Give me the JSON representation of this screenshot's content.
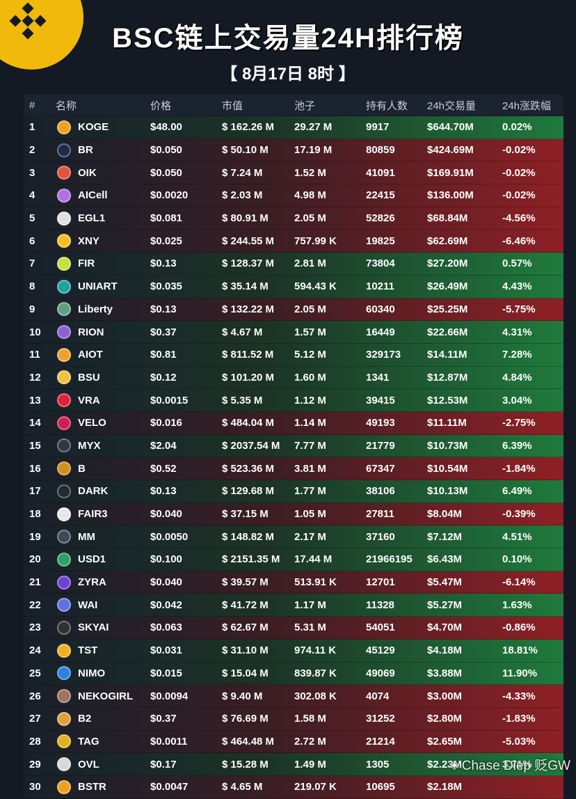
{
  "header": {
    "title": "BSC链上交易量24H排行榜",
    "subtitle": "【 8月17日 8时 】"
  },
  "watermark": "Chase Diep 贬GW",
  "colors": {
    "brand": "#f0b90b",
    "up": "#1f7a3c",
    "down": "#8e2025"
  },
  "chart_data": {
    "type": "table",
    "columns": [
      "#",
      "名称",
      "价格",
      "市值",
      "池子",
      "持有人数",
      "24h交易量",
      "24h涨跌幅"
    ],
    "rows": [
      {
        "rank": "1",
        "name": "KOGE",
        "price": "$48.00",
        "mcap": "$ 162.26 M",
        "pool": "29.27 M",
        "holders": "9917",
        "vol": "$644.70M",
        "chg": "0.02%",
        "dir": "up",
        "icon_color": "#f0a020"
      },
      {
        "rank": "2",
        "name": "BR",
        "price": "$0.050",
        "mcap": "$ 50.10 M",
        "pool": "17.19 M",
        "holders": "80859",
        "vol": "$424.69M",
        "chg": "-0.02%",
        "dir": "down",
        "icon_color": "#1b2a4a"
      },
      {
        "rank": "3",
        "name": "OIK",
        "price": "$0.050",
        "mcap": "$ 7.24 M",
        "pool": "1.52 M",
        "holders": "41091",
        "vol": "$169.91M",
        "chg": "-0.02%",
        "dir": "down",
        "icon_color": "#e0523a"
      },
      {
        "rank": "4",
        "name": "AICell",
        "price": "$0.0020",
        "mcap": "$ 2.03 M",
        "pool": "4.98 M",
        "holders": "22415",
        "vol": "$136.00M",
        "chg": "-0.02%",
        "dir": "down",
        "icon_color": "#b070e0"
      },
      {
        "rank": "5",
        "name": "EGL1",
        "price": "$0.081",
        "mcap": "$ 80.91 M",
        "pool": "2.05 M",
        "holders": "52826",
        "vol": "$68.84M",
        "chg": "-4.56%",
        "dir": "down",
        "icon_color": "#e0e0e0"
      },
      {
        "rank": "6",
        "name": "XNY",
        "price": "$0.025",
        "mcap": "$ 244.55 M",
        "pool": "757.99 K",
        "holders": "19825",
        "vol": "$62.69M",
        "chg": "-6.46%",
        "dir": "down",
        "icon_color": "#f0c020"
      },
      {
        "rank": "7",
        "name": "FIR",
        "price": "$0.13",
        "mcap": "$ 128.37 M",
        "pool": "2.81 M",
        "holders": "73804",
        "vol": "$27.20M",
        "chg": "0.57%",
        "dir": "up",
        "icon_color": "#c8e040"
      },
      {
        "rank": "8",
        "name": "UNIART",
        "price": "$0.035",
        "mcap": "$ 35.14 M",
        "pool": "594.43 K",
        "holders": "10211",
        "vol": "$26.49M",
        "chg": "4.43%",
        "dir": "up",
        "icon_color": "#20a0a0"
      },
      {
        "rank": "9",
        "name": "Liberty",
        "price": "$0.13",
        "mcap": "$ 132.22 M",
        "pool": "2.05 M",
        "holders": "60340",
        "vol": "$25.25M",
        "chg": "-5.75%",
        "dir": "down",
        "icon_color": "#60a080"
      },
      {
        "rank": "10",
        "name": "RION",
        "price": "$0.37",
        "mcap": "$ 4.67 M",
        "pool": "1.57 M",
        "holders": "16449",
        "vol": "$22.66M",
        "chg": "4.31%",
        "dir": "up",
        "icon_color": "#9060d0"
      },
      {
        "rank": "11",
        "name": "AIOT",
        "price": "$0.81",
        "mcap": "$ 811.52 M",
        "pool": "5.12 M",
        "holders": "329173",
        "vol": "$14.11M",
        "chg": "7.28%",
        "dir": "up",
        "icon_color": "#f0a030"
      },
      {
        "rank": "12",
        "name": "BSU",
        "price": "$0.12",
        "mcap": "$ 101.20 M",
        "pool": "1.60 M",
        "holders": "1341",
        "vol": "$12.87M",
        "chg": "4.84%",
        "dir": "up",
        "icon_color": "#f0c040"
      },
      {
        "rank": "13",
        "name": "VRA",
        "price": "$0.0015",
        "mcap": "$ 5.35 M",
        "pool": "1.12 M",
        "holders": "39415",
        "vol": "$12.53M",
        "chg": "3.04%",
        "dir": "up",
        "icon_color": "#e02040"
      },
      {
        "rank": "14",
        "name": "VELO",
        "price": "$0.016",
        "mcap": "$ 484.04 M",
        "pool": "1.14 M",
        "holders": "49193",
        "vol": "$11.11M",
        "chg": "-2.75%",
        "dir": "down",
        "icon_color": "#d02050"
      },
      {
        "rank": "15",
        "name": "MYX",
        "price": "$2.04",
        "mcap": "$ 2037.54 M",
        "pool": "7.77 M",
        "holders": "21779",
        "vol": "$10.73M",
        "chg": "6.39%",
        "dir": "up",
        "icon_color": "#303848"
      },
      {
        "rank": "16",
        "name": "B",
        "price": "$0.52",
        "mcap": "$ 523.36 M",
        "pool": "3.81 M",
        "holders": "67347",
        "vol": "$10.54M",
        "chg": "-1.84%",
        "dir": "down",
        "icon_color": "#d09020"
      },
      {
        "rank": "17",
        "name": "DARK",
        "price": "$0.13",
        "mcap": "$ 129.68 M",
        "pool": "1.77 M",
        "holders": "38106",
        "vol": "$10.13M",
        "chg": "6.49%",
        "dir": "up",
        "icon_color": "#202830"
      },
      {
        "rank": "18",
        "name": "FAIR3",
        "price": "$0.040",
        "mcap": "$ 37.15 M",
        "pool": "1.05 M",
        "holders": "27811",
        "vol": "$8.04M",
        "chg": "-0.39%",
        "dir": "down",
        "icon_color": "#e8e8e8"
      },
      {
        "rank": "19",
        "name": "MM",
        "price": "$0.0050",
        "mcap": "$ 148.82 M",
        "pool": "2.17 M",
        "holders": "37160",
        "vol": "$7.12M",
        "chg": "4.51%",
        "dir": "up",
        "icon_color": "#404858"
      },
      {
        "rank": "20",
        "name": "USD1",
        "price": "$0.100",
        "mcap": "$ 2151.35 M",
        "pool": "17.44 M",
        "holders": "21966195",
        "vol": "$6.43M",
        "chg": "0.10%",
        "dir": "up",
        "icon_color": "#30a060"
      },
      {
        "rank": "21",
        "name": "ZYRA",
        "price": "$0.040",
        "mcap": "$ 39.57 M",
        "pool": "513.91 K",
        "holders": "12701",
        "vol": "$5.47M",
        "chg": "-6.14%",
        "dir": "down",
        "icon_color": "#7040d0"
      },
      {
        "rank": "22",
        "name": "WAI",
        "price": "$0.042",
        "mcap": "$ 41.72 M",
        "pool": "1.17 M",
        "holders": "11328",
        "vol": "$5.27M",
        "chg": "1.63%",
        "dir": "up",
        "icon_color": "#6070e0"
      },
      {
        "rank": "23",
        "name": "SKYAI",
        "price": "$0.063",
        "mcap": "$ 62.67 M",
        "pool": "5.31 M",
        "holders": "54051",
        "vol": "$4.70M",
        "chg": "-0.86%",
        "dir": "down",
        "icon_color": "#303030"
      },
      {
        "rank": "24",
        "name": "TST",
        "price": "$0.031",
        "mcap": "$ 31.10 M",
        "pool": "974.11 K",
        "holders": "45129",
        "vol": "$4.18M",
        "chg": "18.81%",
        "dir": "up",
        "icon_color": "#f0b020"
      },
      {
        "rank": "25",
        "name": "NIMO",
        "price": "$0.015",
        "mcap": "$ 15.04 M",
        "pool": "839.87 K",
        "holders": "49069",
        "vol": "$3.88M",
        "chg": "11.90%",
        "dir": "up",
        "icon_color": "#3080e0"
      },
      {
        "rank": "26",
        "name": "NEKOGIRL",
        "price": "$0.0094",
        "mcap": "$ 9.40 M",
        "pool": "302.08 K",
        "holders": "4074",
        "vol": "$3.00M",
        "chg": "-4.33%",
        "dir": "down",
        "icon_color": "#a07060"
      },
      {
        "rank": "27",
        "name": "B2",
        "price": "$0.37",
        "mcap": "$ 76.69 M",
        "pool": "1.58 M",
        "holders": "31252",
        "vol": "$2.80M",
        "chg": "-1.83%",
        "dir": "down",
        "icon_color": "#e0a040"
      },
      {
        "rank": "28",
        "name": "TAG",
        "price": "$0.0011",
        "mcap": "$ 464.48 M",
        "pool": "2.72 M",
        "holders": "21214",
        "vol": "$2.65M",
        "chg": "-5.03%",
        "dir": "down",
        "icon_color": "#e0b020"
      },
      {
        "rank": "29",
        "name": "OVL",
        "price": "$0.17",
        "mcap": "$ 15.28 M",
        "pool": "1.49 M",
        "holders": "1305",
        "vol": "$2.23M",
        "chg": "3.71%",
        "dir": "up",
        "icon_color": "#d8d8d8"
      },
      {
        "rank": "30",
        "name": "BSTR",
        "price": "$0.0047",
        "mcap": "$ 4.65 M",
        "pool": "219.07 K",
        "holders": "10695",
        "vol": "$2.18M",
        "chg": "",
        "dir": "down",
        "icon_color": "#f0a020"
      }
    ]
  }
}
